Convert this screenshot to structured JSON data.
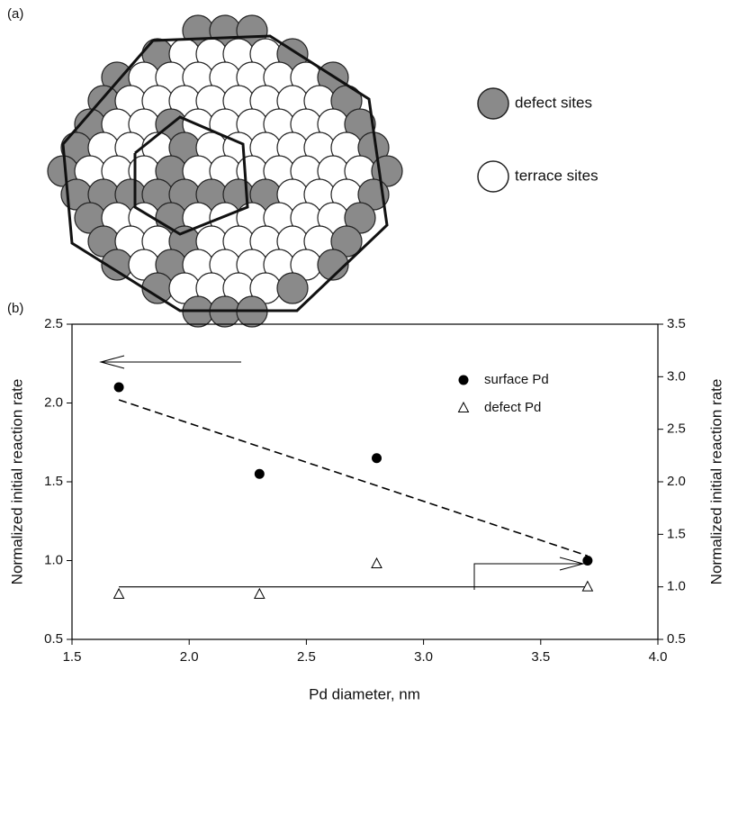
{
  "panel_a": {
    "label": "(a)",
    "legend": [
      "defect sites",
      "terrace sites"
    ]
  },
  "chart_data": {
    "type": "scatter",
    "panel_label": "(b)",
    "xlabel": "Pd diameter, nm",
    "ylabel": "Normalized initial reaction rate",
    "y2label": "Normalized initial reaction rate",
    "xlim": [
      1.5,
      4.0
    ],
    "xticks": [
      1.5,
      {
        "value": 2,
        "label": "2.0"
      },
      2.5,
      {
        "value": 3,
        "label": "3.0"
      },
      3.5,
      {
        "value": 4,
        "label": "4.0"
      }
    ],
    "ylim": [
      0.5,
      2.5
    ],
    "yticks": [
      0.5,
      {
        "value": 1,
        "label": "1.0"
      },
      1.5,
      {
        "value": 2,
        "label": "2.0"
      },
      2.5
    ],
    "y2lim": [
      0.5,
      3.5
    ],
    "y2ticks": [
      0.5,
      {
        "value": 1,
        "label": "1.0"
      },
      1.5,
      {
        "value": 2,
        "label": "2.0"
      },
      2.5,
      {
        "value": 3,
        "label": "3.0"
      },
      3.5
    ],
    "grid": false,
    "legend": "upper right",
    "series": [
      {
        "name": "surface Pd",
        "color": "#000000",
        "marker": "circle",
        "x": [
          1.7,
          2.3,
          2.8,
          3.7
        ],
        "values": [
          2.1,
          1.55,
          1.65,
          1.0
        ]
      },
      {
        "name": "defect Pd",
        "color": "#000000",
        "marker": "triangle",
        "axis": "y2",
        "x": [
          1.7,
          2.3,
          2.8,
          3.7
        ],
        "values": [
          0.93,
          0.93,
          1.22,
          1.0
        ]
      }
    ],
    "trend_lines": [
      {
        "axis": "y",
        "style": "dashed",
        "x": [
          1.7,
          3.7
        ],
        "values": [
          2.02,
          1.03
        ]
      },
      {
        "axis": "y2",
        "style": "solid",
        "x": [
          1.7,
          3.7
        ],
        "values": [
          1.0,
          1.0
        ]
      }
    ]
  }
}
